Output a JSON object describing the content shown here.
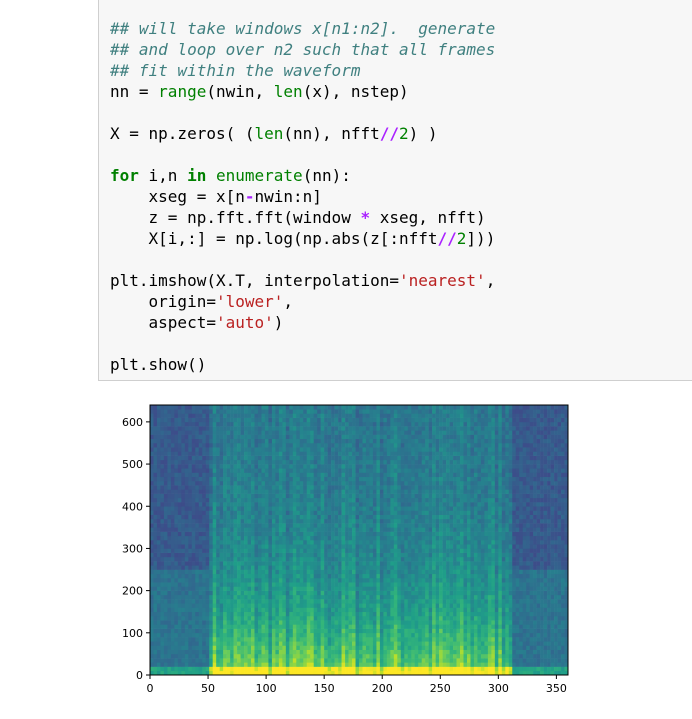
{
  "code_lines": [
    [
      {
        "t": "## will take windows x[n1:n2].  generate",
        "c": "cm"
      }
    ],
    [
      {
        "t": "## and loop over n2 such that all frames",
        "c": "cm"
      }
    ],
    [
      {
        "t": "## fit within the waveform",
        "c": "cm"
      }
    ],
    [
      {
        "t": "nn = "
      },
      {
        "t": "range",
        "c": "bi"
      },
      {
        "t": "(nwin, "
      },
      {
        "t": "len",
        "c": "bi"
      },
      {
        "t": "(x), nstep)"
      }
    ],
    [],
    [
      {
        "t": "X = np.zeros( ("
      },
      {
        "t": "len",
        "c": "bi"
      },
      {
        "t": "(nn), nfft"
      },
      {
        "t": "//",
        "c": "op"
      },
      {
        "t": "2",
        "c": "nu"
      },
      {
        "t": ") )"
      }
    ],
    [],
    [
      {
        "t": "for",
        "c": "kw"
      },
      {
        "t": " i,n "
      },
      {
        "t": "in",
        "c": "kw"
      },
      {
        "t": " "
      },
      {
        "t": "enumerate",
        "c": "bi"
      },
      {
        "t": "(nn):"
      }
    ],
    [
      {
        "t": "    xseg = x[n"
      },
      {
        "t": "-",
        "c": "op"
      },
      {
        "t": "nwin:n]"
      }
    ],
    [
      {
        "t": "    z = np.fft.fft(window "
      },
      {
        "t": "*",
        "c": "op"
      },
      {
        "t": " xseg, nfft)"
      }
    ],
    [
      {
        "t": "    X[i,:] = np.log(np.abs(z[:nfft"
      },
      {
        "t": "//",
        "c": "op"
      },
      {
        "t": "2",
        "c": "nu"
      },
      {
        "t": "]))"
      }
    ],
    [],
    [
      {
        "t": "plt.imshow(X.T, interpolation="
      },
      {
        "t": "'nearest'",
        "c": "st"
      },
      {
        "t": ","
      }
    ],
    [
      {
        "t": "    origin="
      },
      {
        "t": "'lower'",
        "c": "st"
      },
      {
        "t": ","
      }
    ],
    [
      {
        "t": "    aspect="
      },
      {
        "t": "'auto'",
        "c": "st"
      },
      {
        "t": ")"
      }
    ],
    [],
    [
      {
        "t": "plt.show()"
      }
    ]
  ],
  "chart_data": {
    "type": "heatmap",
    "colormap": "viridis",
    "xlim": [
      0,
      360
    ],
    "ylim": [
      0,
      640
    ],
    "xticks": [
      "0",
      "50",
      "100",
      "150",
      "200",
      "250",
      "300",
      "350"
    ],
    "yticks": [
      "0",
      "100",
      "200",
      "300",
      "400",
      "500",
      "600"
    ],
    "xtick_values": [
      0,
      50,
      100,
      150,
      200,
      250,
      300,
      350
    ],
    "ytick_values": [
      0,
      100,
      200,
      300,
      400,
      500,
      600
    ],
    "title": "",
    "xlabel": "",
    "ylabel": ""
  },
  "colors": {
    "cell_background": "#f7f7f7",
    "comment": "#408080",
    "keyword": "#008000",
    "string": "#ba2121",
    "operator": "#aa22ff"
  }
}
